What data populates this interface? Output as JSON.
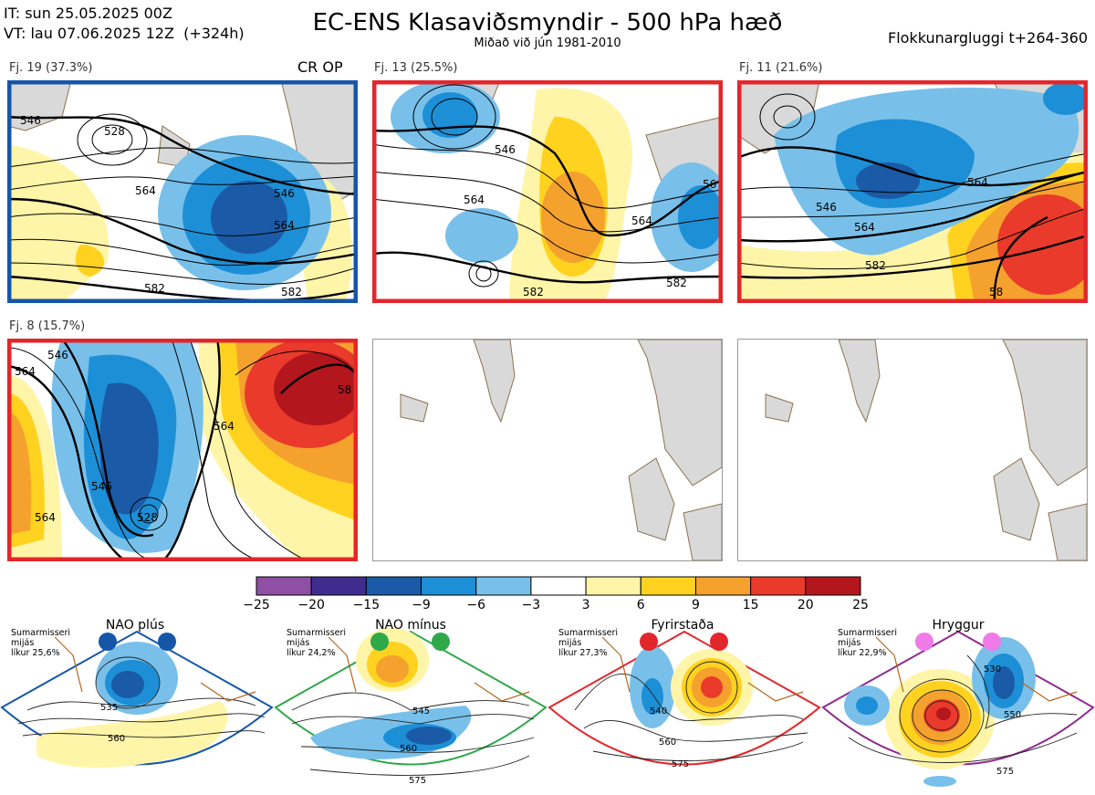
{
  "header": {
    "init_time": "IT: sun 25.05.2025 00Z",
    "valid_time": "VT: lau 07.06.2025 12Z  (+324h)",
    "title": "EC-ENS Klasaviðsmyndir - 500 hPa hæð",
    "subtitle": "Miðað við jún 1981-2010",
    "window": "Flokkunargluggi t+264-360"
  },
  "clusters": [
    {
      "label": "Fj. 19 (37.3%)",
      "tag": "CR OP",
      "border": "#1556a8",
      "contours": [
        "546",
        "564",
        "582",
        "528",
        "546",
        "564",
        "582"
      ]
    },
    {
      "label": "Fj. 13 (25.5%)",
      "tag": "",
      "border": "#e3262b",
      "contours": [
        "546",
        "564",
        "564",
        "582",
        "582",
        "56"
      ]
    },
    {
      "label": "Fj. 11 (21.6%)",
      "tag": "",
      "border": "#e3262b",
      "contours": [
        "546",
        "564",
        "582",
        "564",
        "58"
      ]
    },
    {
      "label": "Fj. 8 (15.7%)",
      "tag": "",
      "border": "#e3262b",
      "contours": [
        "564",
        "546",
        "564",
        "528",
        "564",
        "546",
        "58"
      ]
    }
  ],
  "chart_data": {
    "type": "heatmap",
    "title": "EC-ENS Klasaviðsmyndir - 500 hPa hæð",
    "colorbar": {
      "ticks": [
        "−25",
        "−20",
        "−15",
        "−9",
        "−6",
        "−3",
        "3",
        "6",
        "9",
        "15",
        "20",
        "25"
      ],
      "colors": [
        "#8e4fa4",
        "#3e2d8f",
        "#1b5aa6",
        "#1d8fd6",
        "#78c0ea",
        "#ffffff",
        "#fff5a8",
        "#ffd21f",
        "#f5a12e",
        "#ea3a2b",
        "#b4161e"
      ]
    },
    "clusters_probability": [
      {
        "name": "Fj. 19",
        "percent": 37.3
      },
      {
        "name": "Fj. 13",
        "percent": 25.5
      },
      {
        "name": "Fj. 11",
        "percent": 21.6
      },
      {
        "name": "Fj. 8",
        "percent": 15.7
      }
    ]
  },
  "regimes": [
    {
      "title": "NAO plús",
      "note": "Sumarmisseri\nmijás\nlíkur 25,6%",
      "border": "#1556a8",
      "dot": "#1556a8",
      "contours": [
        "535",
        "560"
      ]
    },
    {
      "title": "NAO mínus",
      "note": "Sumarmisseri\nmijás\nlíkur 24,2%",
      "border": "#2fa84a",
      "dot": "#2fa84a",
      "contours": [
        "545",
        "560",
        "575"
      ]
    },
    {
      "title": "Fyrirstaða",
      "note": "Sumarmisseri\nmijás\nlíkur 27,3%",
      "border": "#e3262b",
      "dot": "#e3262b",
      "contours": [
        "540",
        "560",
        "575"
      ]
    },
    {
      "title": "Hryggur",
      "note": "Sumarmisseri\nmijás\nlíkur 22,9%",
      "border": "#8e2a8e",
      "dot": "#f07ae8",
      "contours": [
        "530",
        "550",
        "575"
      ]
    }
  ]
}
